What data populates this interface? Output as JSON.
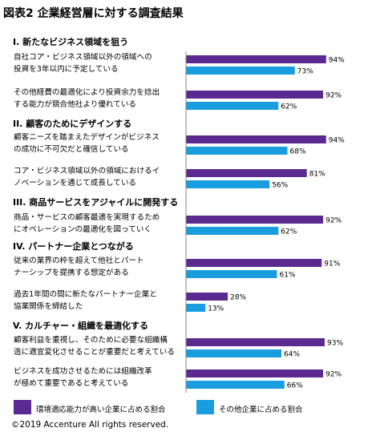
{
  "title": "図表2 企業経営層に対する調査結果",
  "colors": {
    "high": "#5b2a91",
    "other": "#1a9ddf",
    "axis": "#888888"
  },
  "chart_data": {
    "type": "bar",
    "orientation": "horizontal",
    "xlim": [
      0,
      100
    ],
    "sections": [
      {
        "title": "I. 新たなビジネス領域を狙う"
      },
      {
        "title": "II. 顧客のためにデザインする"
      },
      {
        "title": "III. 商品サービスをアジャイルに開発する"
      },
      {
        "title": "IV. パートナー企業とつながる"
      },
      {
        "title": "V. カルチャー・組織を最適化する"
      }
    ],
    "categories": [
      {
        "section": 0,
        "lines": [
          "自社コア・ビジネス領域以外の領域への",
          "投資を3年以内に予定している"
        ]
      },
      {
        "section": 0,
        "lines": [
          "その他経費の最適化により投資余力を捻出",
          "する能力が競合他社より優れている"
        ]
      },
      {
        "section": 1,
        "lines": [
          "顧客ニーズを踏まえたデザインがビジネス",
          "の成功に不可欠だと確信している"
        ]
      },
      {
        "section": 1,
        "lines": [
          "コア・ビジネス領域以外の領域におけるイ",
          "ノベーションを通じて成長している"
        ]
      },
      {
        "section": 2,
        "lines": [
          "商品・サービスの顧客最適を実現するため",
          "にオペレーションの最適化を図っていく"
        ]
      },
      {
        "section": 3,
        "lines": [
          "従来の業界の枠を超えて他社とパート",
          "ナーシップを提携する想定がある"
        ]
      },
      {
        "section": 3,
        "lines": [
          "過去1年間の間に新たなパートナー企業と",
          "協業関係を締結した"
        ]
      },
      {
        "section": 4,
        "lines": [
          "顧客利益を重視し、そのために必要な組織構",
          "造に適宜変化させることが重要だと考えている"
        ]
      },
      {
        "section": 4,
        "lines": [
          "ビジネスを成功させるためには組織改革",
          "が極めて重要であると考えている"
        ]
      }
    ],
    "series": [
      {
        "name": "環境適応能力が高い企業に占める割合",
        "values": [
          94,
          92,
          94,
          81,
          92,
          91,
          28,
          93,
          92
        ],
        "labels": [
          "94%",
          "92%",
          "94%",
          "81%",
          "92%",
          "91%",
          "28%",
          "93%",
          "92%"
        ]
      },
      {
        "name": "その他企業に占める割合",
        "values": [
          73,
          62,
          68,
          56,
          62,
          61,
          13,
          64,
          66
        ],
        "labels": [
          "73%",
          "62%",
          "68%",
          "56%",
          "62%",
          "61%",
          "13%",
          "64%",
          "66%"
        ]
      }
    ]
  },
  "copyright": "©2019 Accenture All rights reserved."
}
